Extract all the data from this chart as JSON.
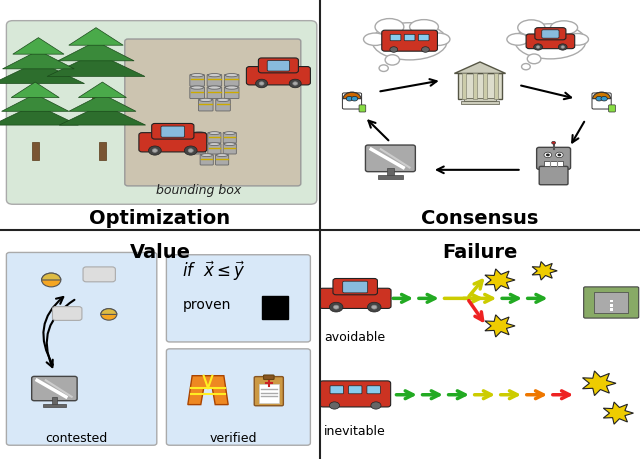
{
  "fig_width": 6.4,
  "fig_height": 4.59,
  "dpi": 100,
  "bg_color": "#ffffff",
  "divider_color": "#222222",
  "panel_titles": [
    "Optimization",
    "Consensus",
    "Value",
    "Failure"
  ],
  "title_fontsize": 14,
  "optimization_bg": "#d8e8d8",
  "optimization_inner_bg": "#ccc4b0",
  "value_left_bg": "#d8e8f8",
  "value_right_bg": "#d8e8f8",
  "tree_green_dark": "#2d6e2d",
  "tree_green_mid": "#3a8a3a",
  "car_red": "#cc3322",
  "car_blue": "#4488cc",
  "arrow_green": "#22aa22",
  "arrow_yellow": "#cccc00",
  "arrow_orange": "#ee7700",
  "arrow_red": "#ee2222",
  "explosion_yellow": "#eecc00",
  "explosion_outline": "#222222",
  "person_skin": "#f5a623",
  "person_hair_orange": "#cc6600",
  "robot_gray": "#888888",
  "robot_dark": "#555555"
}
